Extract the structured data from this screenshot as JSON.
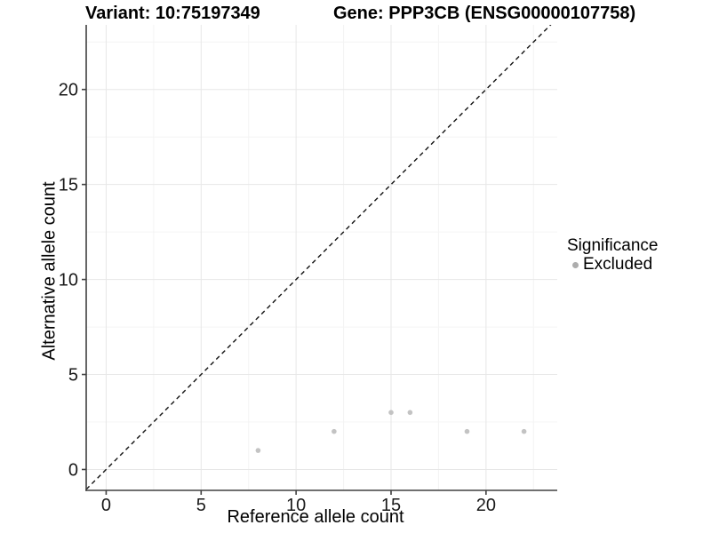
{
  "chart_data": {
    "type": "scatter",
    "title_left": "Variant: 10:75197349",
    "title_right": "Gene: PPP3CB (ENSG00000107758)",
    "xlabel": "Reference allele count",
    "ylabel": "Alternative allele count",
    "xlim": [
      -1.05,
      23.75
    ],
    "ylim": [
      -1.1,
      23.4
    ],
    "xticks": [
      0,
      5,
      10,
      15,
      20
    ],
    "yticks": [
      0,
      5,
      10,
      15,
      20
    ],
    "xminor": [
      2.5,
      7.5,
      12.5,
      17.5,
      22.5
    ],
    "yminor": [
      2.5,
      7.5,
      12.5,
      17.5,
      22.5
    ],
    "grid": "major and minor gridlines on white panel",
    "reference_line": {
      "type": "abline",
      "slope": 1,
      "intercept": 0,
      "linestyle": "dashed",
      "color": "#111111"
    },
    "series": [
      {
        "name": "Excluded",
        "color": "#c3c3c3",
        "points": [
          [
            8,
            1
          ],
          [
            12,
            2
          ],
          [
            15,
            3
          ],
          [
            16,
            3
          ],
          [
            19,
            2
          ],
          [
            22,
            2
          ]
        ]
      }
    ],
    "legend": {
      "title": "Significance",
      "position": "right",
      "entries": [
        {
          "label": "Excluded",
          "color": "#adadad"
        }
      ]
    },
    "colors": {
      "axis_line": "#404040",
      "grid_major": "#e7e7e7",
      "grid_minor": "#f4f4f4",
      "tick_text": "#1a1a1a",
      "background": "#ffffff"
    }
  }
}
